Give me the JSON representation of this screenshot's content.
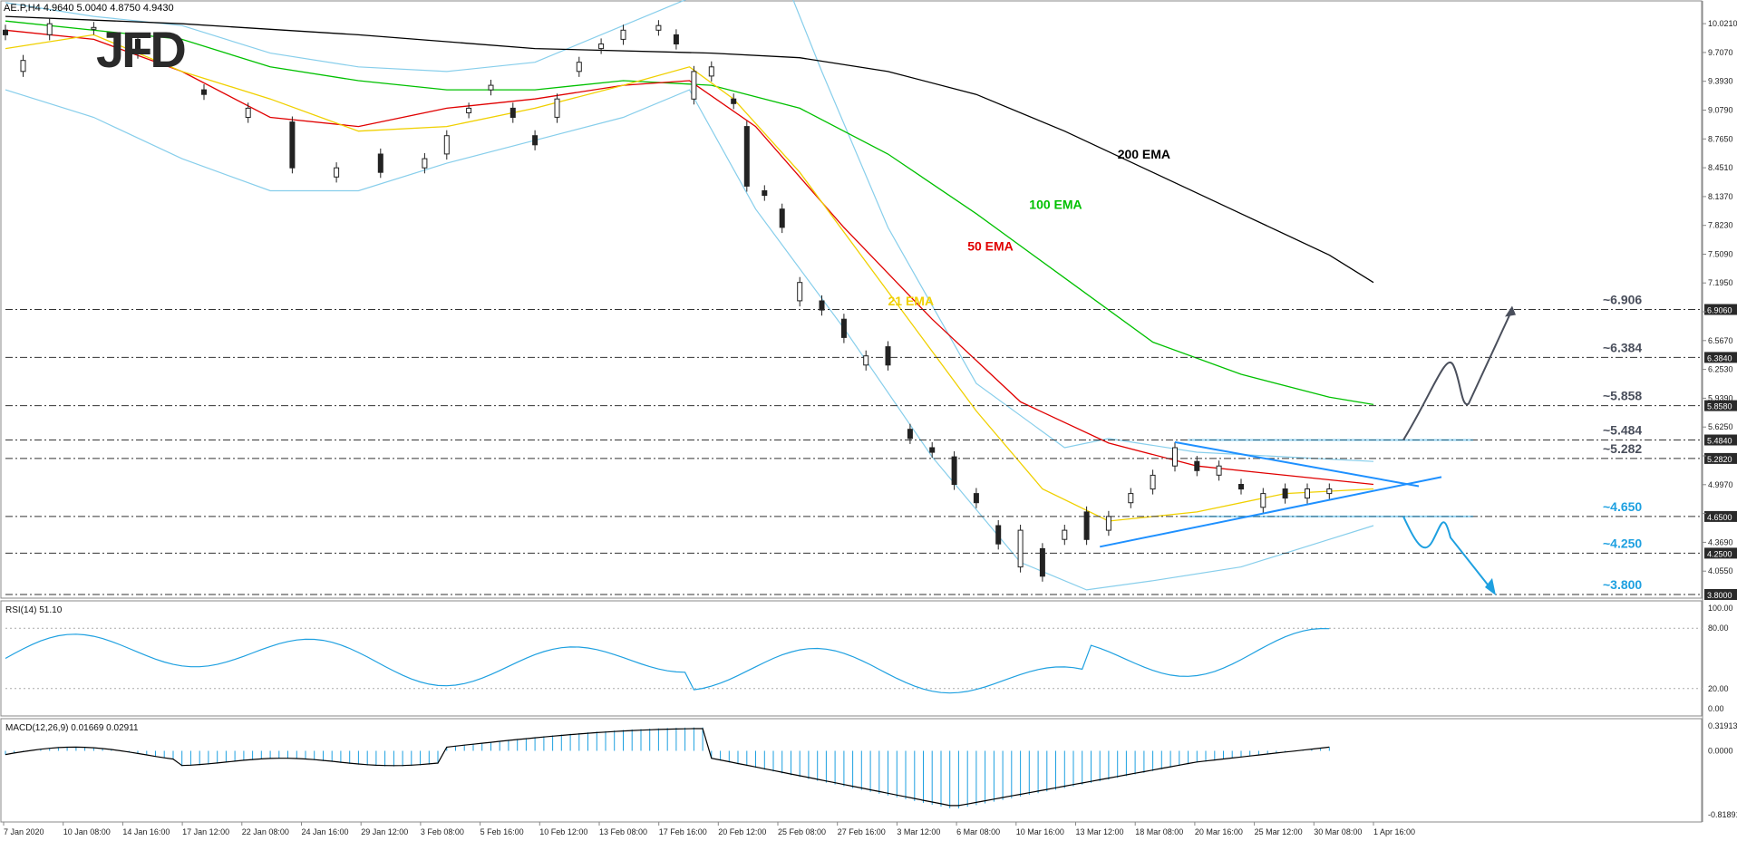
{
  "header": {
    "symbol_info": "AE.P,H4  4.9640 5.0040 4.8750 4.9430",
    "logo_text": "JFD"
  },
  "colors": {
    "ema200": "#000000",
    "ema100": "#00c000",
    "ema50": "#e00000",
    "ema21": "#f0d000",
    "bollinger": "#87ceeb",
    "level_accent": "#1ea0e0",
    "triangle": "#1e90ff",
    "up_candle": "#ffffff",
    "down_candle": "#222222",
    "rsi_line": "#1ea0e0",
    "macd_hist": "#1ea0e0",
    "macd_signal": "#000000",
    "arrow_up": "#4a4f5c",
    "arrow_down": "#1ea0e0"
  },
  "chart_data": {
    "type": "candlestick",
    "price_axis": {
      "ticks": [
        10.021,
        9.707,
        9.393,
        9.079,
        8.765,
        8.451,
        8.137,
        7.823,
        7.509,
        7.195,
        6.881,
        6.567,
        6.253,
        5.939,
        5.625,
        5.311,
        4.997,
        4.683,
        4.369,
        4.055
      ],
      "tick_labels": [
        "10.0210",
        "9.7070",
        "9.3930",
        "9.0790",
        "8.7650",
        "8.4510",
        "8.1370",
        "7.8230",
        "7.5090",
        "7.1950",
        "",
        "6.5670",
        "6.2530",
        "5.9390",
        "5.6250",
        "",
        "4.9970",
        "",
        "4.3690",
        "4.0550"
      ],
      "range": [
        3.78,
        10.2
      ]
    },
    "time_axis": {
      "labels": [
        "7 Jan 2020",
        "10 Jan 08:00",
        "14 Jan 16:00",
        "17 Jan 12:00",
        "22 Jan 08:00",
        "24 Jan 16:00",
        "29 Jan 12:00",
        "3 Feb 08:00",
        "5 Feb 16:00",
        "10 Feb 12:00",
        "13 Feb 08:00",
        "17 Feb 16:00",
        "20 Feb 12:00",
        "25 Feb 08:00",
        "27 Feb 16:00",
        "3 Mar 12:00",
        "6 Mar 08:00",
        "10 Mar 16:00",
        "13 Mar 12:00",
        "18 Mar 08:00",
        "20 Mar 16:00",
        "25 Mar 12:00",
        "30 Mar 08:00",
        "1 Apr 16:00"
      ]
    },
    "levels": [
      {
        "value": 6.906,
        "label": "~6.906",
        "tag": "6.9060",
        "color": "#4a4f5c"
      },
      {
        "value": 6.384,
        "label": "~6.384",
        "tag": "6.3840",
        "color": "#4a4f5c"
      },
      {
        "value": 5.858,
        "label": "~5.858",
        "tag": "5.8580",
        "color": "#4a4f5c"
      },
      {
        "value": 5.484,
        "label": "~5.484",
        "tag": "5.4840",
        "color": "#4a4f5c"
      },
      {
        "value": 5.282,
        "label": "~5.282",
        "tag": "5.2820",
        "color": "#4a4f5c"
      },
      {
        "value": 4.65,
        "label": "~4.650",
        "tag": "4.6500",
        "color": "#1ea0e0"
      },
      {
        "value": 4.25,
        "label": "~4.250",
        "tag": "4.2500",
        "color": "#1ea0e0"
      },
      {
        "value": 3.8,
        "label": "~3.800",
        "tag": "3.8000",
        "color": "#1ea0e0"
      }
    ],
    "ema_labels": [
      {
        "name": "200 EMA",
        "color": "#000000"
      },
      {
        "name": "100 EMA",
        "color": "#00c000"
      },
      {
        "name": "50 EMA",
        "color": "#e00000"
      },
      {
        "name": "21 EMA",
        "color": "#f0d000"
      }
    ],
    "ema200": [
      [
        0,
        10.1
      ],
      [
        40,
        10.02
      ],
      [
        80,
        9.9
      ],
      [
        120,
        9.75
      ],
      [
        160,
        9.7
      ],
      [
        180,
        9.65
      ],
      [
        200,
        9.5
      ],
      [
        220,
        9.25
      ],
      [
        240,
        8.85
      ],
      [
        260,
        8.4
      ],
      [
        280,
        7.95
      ],
      [
        300,
        7.5
      ],
      [
        310,
        7.2
      ]
    ],
    "ema100": [
      [
        0,
        10.05
      ],
      [
        40,
        9.85
      ],
      [
        60,
        9.55
      ],
      [
        80,
        9.4
      ],
      [
        100,
        9.3
      ],
      [
        120,
        9.3
      ],
      [
        140,
        9.4
      ],
      [
        160,
        9.35
      ],
      [
        180,
        9.1
      ],
      [
        200,
        8.6
      ],
      [
        220,
        7.95
      ],
      [
        240,
        7.25
      ],
      [
        260,
        6.55
      ],
      [
        280,
        6.2
      ],
      [
        300,
        5.95
      ],
      [
        310,
        5.87
      ]
    ],
    "ema50": [
      [
        0,
        9.95
      ],
      [
        20,
        9.85
      ],
      [
        40,
        9.5
      ],
      [
        60,
        9.0
      ],
      [
        80,
        8.9
      ],
      [
        100,
        9.1
      ],
      [
        120,
        9.2
      ],
      [
        140,
        9.35
      ],
      [
        155,
        9.4
      ],
      [
        170,
        8.9
      ],
      [
        190,
        7.8
      ],
      [
        210,
        6.8
      ],
      [
        230,
        5.9
      ],
      [
        250,
        5.45
      ],
      [
        270,
        5.2
      ],
      [
        290,
        5.1
      ],
      [
        310,
        5.0
      ]
    ],
    "ema21": [
      [
        0,
        9.75
      ],
      [
        20,
        9.9
      ],
      [
        40,
        9.5
      ],
      [
        60,
        9.2
      ],
      [
        80,
        8.85
      ],
      [
        100,
        8.9
      ],
      [
        120,
        9.1
      ],
      [
        140,
        9.35
      ],
      [
        155,
        9.55
      ],
      [
        165,
        9.2
      ],
      [
        180,
        8.4
      ],
      [
        200,
        7.1
      ],
      [
        220,
        5.8
      ],
      [
        235,
        4.95
      ],
      [
        250,
        4.6
      ],
      [
        270,
        4.7
      ],
      [
        290,
        4.9
      ],
      [
        310,
        4.95
      ]
    ],
    "bb_upper": [
      [
        0,
        10.25
      ],
      [
        20,
        10.1
      ],
      [
        40,
        10.0
      ],
      [
        60,
        9.7
      ],
      [
        80,
        9.55
      ],
      [
        100,
        9.5
      ],
      [
        120,
        9.6
      ],
      [
        140,
        10.0
      ],
      [
        160,
        10.4
      ],
      [
        175,
        10.7
      ],
      [
        185,
        9.5
      ],
      [
        200,
        7.8
      ],
      [
        220,
        6.1
      ],
      [
        240,
        5.4
      ],
      [
        250,
        5.5
      ],
      [
        270,
        5.35
      ],
      [
        290,
        5.3
      ],
      [
        310,
        5.25
      ]
    ],
    "bb_lower": [
      [
        0,
        9.3
      ],
      [
        20,
        9.0
      ],
      [
        40,
        8.55
      ],
      [
        60,
        8.2
      ],
      [
        80,
        8.2
      ],
      [
        100,
        8.5
      ],
      [
        120,
        8.75
      ],
      [
        140,
        9.0
      ],
      [
        155,
        9.3
      ],
      [
        170,
        8.0
      ],
      [
        190,
        6.7
      ],
      [
        210,
        5.3
      ],
      [
        230,
        4.15
      ],
      [
        245,
        3.85
      ],
      [
        260,
        3.95
      ],
      [
        280,
        4.1
      ],
      [
        300,
        4.4
      ],
      [
        310,
        4.55
      ]
    ],
    "candles": [
      [
        0,
        9.95,
        9.9
      ],
      [
        4,
        9.5,
        9.62
      ],
      [
        10,
        9.9,
        10.02
      ],
      [
        20,
        9.96,
        9.98
      ],
      [
        30,
        9.85,
        9.7
      ],
      [
        45,
        9.3,
        9.25
      ],
      [
        55,
        9.0,
        9.1
      ],
      [
        65,
        8.95,
        8.45
      ],
      [
        75,
        8.35,
        8.45
      ],
      [
        85,
        8.6,
        8.4
      ],
      [
        95,
        8.45,
        8.55
      ],
      [
        100,
        8.6,
        8.8
      ],
      [
        105,
        9.05,
        9.1
      ],
      [
        110,
        9.3,
        9.35
      ],
      [
        115,
        9.1,
        9.0
      ],
      [
        120,
        8.8,
        8.7
      ],
      [
        125,
        9.0,
        9.2
      ],
      [
        130,
        9.5,
        9.6
      ],
      [
        135,
        9.75,
        9.8
      ],
      [
        140,
        9.85,
        9.95
      ],
      [
        148,
        9.95,
        10.0
      ],
      [
        152,
        9.9,
        9.8
      ],
      [
        156,
        9.2,
        9.5
      ],
      [
        160,
        9.45,
        9.55
      ],
      [
        165,
        9.2,
        9.15
      ],
      [
        168,
        8.9,
        8.25
      ],
      [
        172,
        8.2,
        8.15
      ],
      [
        176,
        8.0,
        7.8
      ],
      [
        180,
        7.0,
        7.2
      ],
      [
        185,
        7.0,
        6.9
      ],
      [
        190,
        6.8,
        6.6
      ],
      [
        195,
        6.3,
        6.4
      ],
      [
        200,
        6.5,
        6.3
      ],
      [
        205,
        5.6,
        5.5
      ],
      [
        210,
        5.4,
        5.35
      ],
      [
        215,
        5.3,
        5.0
      ],
      [
        220,
        4.9,
        4.8
      ],
      [
        225,
        4.55,
        4.35
      ],
      [
        230,
        4.1,
        4.5
      ],
      [
        235,
        4.3,
        4.0
      ],
      [
        240,
        4.4,
        4.5
      ],
      [
        245,
        4.7,
        4.4
      ],
      [
        250,
        4.5,
        4.65
      ],
      [
        255,
        4.8,
        4.9
      ],
      [
        260,
        4.95,
        5.1
      ],
      [
        265,
        5.2,
        5.4
      ],
      [
        270,
        5.25,
        5.15
      ],
      [
        275,
        5.1,
        5.2
      ],
      [
        280,
        5.0,
        4.95
      ],
      [
        285,
        4.75,
        4.9
      ],
      [
        290,
        4.95,
        4.85
      ],
      [
        295,
        4.85,
        4.95
      ],
      [
        300,
        4.9,
        4.95
      ]
    ],
    "rsi": {
      "label": "RSI(14) 51.10",
      "ticks": [
        100,
        80,
        20,
        0
      ],
      "tick_labels": [
        "100.00",
        "80.00",
        "20.00",
        "0.00"
      ]
    },
    "macd": {
      "label": "MACD(12,26,9) 0.01669 0.02911",
      "ticks": [
        0.31913,
        0,
        -0.81891
      ],
      "tick_labels": [
        "0.31913",
        "0.0000",
        "-0.81891"
      ]
    }
  }
}
